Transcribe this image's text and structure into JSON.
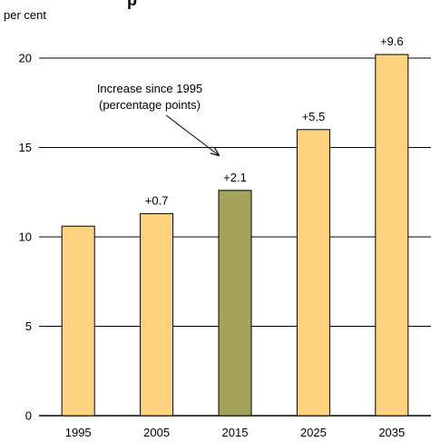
{
  "chart_data": {
    "type": "bar",
    "title": "p",
    "ylabel": "per cent",
    "categories": [
      "1995",
      "2005",
      "2015",
      "2025",
      "2035"
    ],
    "values": [
      10.6,
      11.3,
      12.6,
      16.0,
      20.2
    ],
    "data_labels": [
      "",
      "+0.7",
      "+2.1",
      "+5.5",
      "+9.6"
    ],
    "ylim": [
      0,
      20
    ],
    "yticks": [
      0,
      5,
      10,
      15,
      20
    ],
    "grid": true,
    "colors": [
      "#FFD27F",
      "#FFD27F",
      "#A3A35C",
      "#FFD27F",
      "#FFD27F"
    ],
    "highlight_index": 2,
    "annotation": {
      "lines": [
        "Increase since 1995",
        "(percentage points)"
      ],
      "points_to_category": "2015"
    }
  }
}
